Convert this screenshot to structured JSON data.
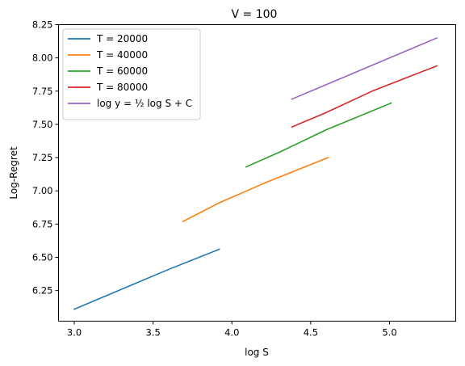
{
  "chart_data": {
    "type": "line",
    "title": "V = 100",
    "xlabel": "log S",
    "ylabel": "Log-Regret",
    "xlim": [
      2.9,
      5.42
    ],
    "ylim": [
      6.02,
      8.25
    ],
    "xticks": [
      {
        "value": 3.0,
        "label": "3.0"
      },
      {
        "value": 3.5,
        "label": "3.5"
      },
      {
        "value": 4.0,
        "label": "4.0"
      },
      {
        "value": 4.5,
        "label": "4.5"
      },
      {
        "value": 5.0,
        "label": "5.0"
      }
    ],
    "yticks": [
      {
        "value": 6.25,
        "label": "6.25"
      },
      {
        "value": 6.5,
        "label": "6.50"
      },
      {
        "value": 6.75,
        "label": "6.75"
      },
      {
        "value": 7.0,
        "label": "7.00"
      },
      {
        "value": 7.25,
        "label": "7.25"
      },
      {
        "value": 7.5,
        "label": "7.50"
      },
      {
        "value": 7.75,
        "label": "7.75"
      },
      {
        "value": 8.0,
        "label": "8.00"
      },
      {
        "value": 8.25,
        "label": "8.25"
      }
    ],
    "grid": false,
    "legend": "upper-left",
    "series": [
      {
        "name": "T = 20000",
        "color": "#1f77b4",
        "x": [
          3.0,
          3.3,
          3.6,
          3.92
        ],
        "y": [
          6.11,
          6.26,
          6.41,
          6.56
        ]
      },
      {
        "name": "T = 40000",
        "color": "#ff7f0e",
        "x": [
          3.69,
          3.92,
          4.21,
          4.61
        ],
        "y": [
          6.77,
          6.91,
          7.06,
          7.25
        ]
      },
      {
        "name": "T = 60000",
        "color": "#2ca02c",
        "x": [
          4.09,
          4.3,
          4.6,
          5.01
        ],
        "y": [
          7.18,
          7.29,
          7.46,
          7.66
        ]
      },
      {
        "name": "T = 80000",
        "color": "#d62728",
        "x": [
          4.38,
          4.6,
          4.89,
          5.3
        ],
        "y": [
          7.48,
          7.59,
          7.75,
          7.94
        ]
      },
      {
        "name": "log y = ½ log S + C",
        "color": "#9467bd",
        "x": [
          4.38,
          5.3
        ],
        "y": [
          7.69,
          8.15
        ]
      }
    ]
  }
}
